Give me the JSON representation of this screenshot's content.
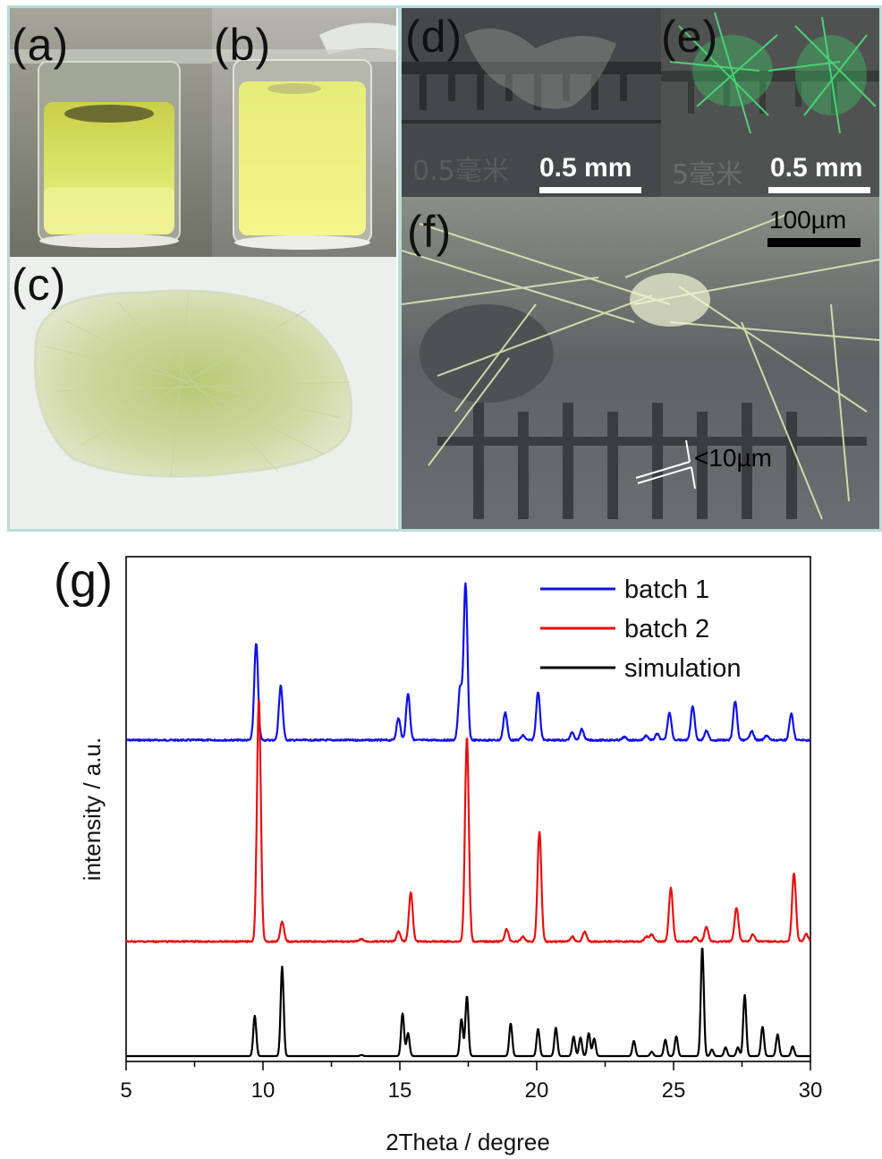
{
  "panels": {
    "a": {
      "label": "(a)"
    },
    "b": {
      "label": "(b)"
    },
    "c": {
      "label": "(c)"
    },
    "d": {
      "label": "(d)",
      "scale_text": "0.5 mm",
      "ruler_text": "0.5毫米"
    },
    "e": {
      "label": "(e)",
      "scale_text": "0.5 mm",
      "ruler_text": "5毫米"
    },
    "f": {
      "label": "(f)",
      "scale_text": "100µm",
      "annotation": "<10µm"
    }
  },
  "colors": {
    "frame": "#b9ddd9",
    "batch1": "#1010e8",
    "batch2": "#e81010",
    "simulation": "#000000",
    "solution_yellow": "#dde76a",
    "fiber_green": "#c8d8a0",
    "fluorescent_green": "#3ad86a"
  },
  "chart_data": {
    "type": "line",
    "panel_label": "(g)",
    "title": "",
    "xlabel": "2Theta / degree",
    "ylabel": "intensity / a.u.",
    "xlim": [
      5,
      30
    ],
    "xticks": [
      "5",
      "10",
      "15",
      "20",
      "25",
      "30"
    ],
    "yticks": [],
    "grid": false,
    "legend_position": "top-right",
    "series": [
      {
        "name": "batch 1",
        "color": "#1010e8",
        "peaks": [
          [
            9.75,
            0.62
          ],
          [
            10.65,
            0.35
          ],
          [
            14.95,
            0.14
          ],
          [
            15.3,
            0.3
          ],
          [
            17.2,
            0.33
          ],
          [
            17.4,
            1.0
          ],
          [
            18.85,
            0.18
          ],
          [
            19.5,
            0.03
          ],
          [
            20.05,
            0.31
          ],
          [
            21.3,
            0.05
          ],
          [
            21.65,
            0.07
          ],
          [
            23.2,
            0.02
          ],
          [
            24.0,
            0.03
          ],
          [
            24.4,
            0.04
          ],
          [
            24.85,
            0.18
          ],
          [
            25.7,
            0.22
          ],
          [
            26.2,
            0.06
          ],
          [
            27.25,
            0.25
          ],
          [
            27.85,
            0.06
          ],
          [
            28.4,
            0.03
          ],
          [
            29.3,
            0.17
          ]
        ]
      },
      {
        "name": "batch 2",
        "color": "#e81010",
        "peaks": [
          [
            9.85,
            1.0
          ],
          [
            10.7,
            0.08
          ],
          [
            13.6,
            0.01
          ],
          [
            14.95,
            0.04
          ],
          [
            15.4,
            0.2
          ],
          [
            17.45,
            0.84
          ],
          [
            18.9,
            0.05
          ],
          [
            19.5,
            0.02
          ],
          [
            20.1,
            0.45
          ],
          [
            21.3,
            0.02
          ],
          [
            21.75,
            0.04
          ],
          [
            24.0,
            0.02
          ],
          [
            24.2,
            0.03
          ],
          [
            24.9,
            0.22
          ],
          [
            25.8,
            0.02
          ],
          [
            26.2,
            0.06
          ],
          [
            27.3,
            0.14
          ],
          [
            27.9,
            0.03
          ],
          [
            29.4,
            0.28
          ],
          [
            29.85,
            0.03
          ]
        ]
      },
      {
        "name": "simulation",
        "color": "#000000",
        "peaks": [
          [
            9.7,
            0.37
          ],
          [
            10.7,
            0.82
          ],
          [
            13.6,
            0.01
          ],
          [
            15.1,
            0.39
          ],
          [
            15.3,
            0.21
          ],
          [
            17.25,
            0.34
          ],
          [
            17.45,
            0.55
          ],
          [
            19.05,
            0.3
          ],
          [
            20.05,
            0.25
          ],
          [
            20.7,
            0.26
          ],
          [
            21.35,
            0.18
          ],
          [
            21.6,
            0.17
          ],
          [
            21.9,
            0.21
          ],
          [
            22.1,
            0.16
          ],
          [
            23.55,
            0.14
          ],
          [
            24.2,
            0.04
          ],
          [
            24.7,
            0.15
          ],
          [
            25.1,
            0.18
          ],
          [
            26.05,
            1.0
          ],
          [
            26.4,
            0.06
          ],
          [
            26.9,
            0.08
          ],
          [
            27.35,
            0.08
          ],
          [
            27.6,
            0.56
          ],
          [
            28.25,
            0.27
          ],
          [
            28.8,
            0.2
          ],
          [
            29.35,
            0.09
          ]
        ]
      }
    ]
  }
}
